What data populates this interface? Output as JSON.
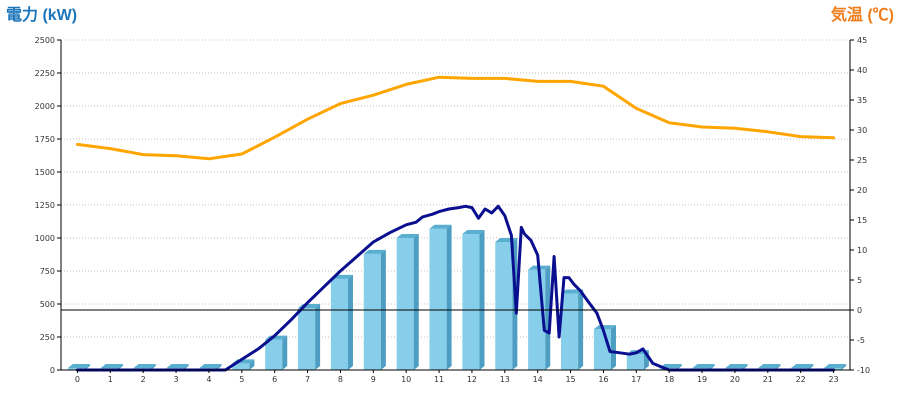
{
  "colors": {
    "left_title": "#1b75bb",
    "right_title": "#ee7d1c",
    "bar_face": "#87ceea",
    "bar_side": "#4d9ec2",
    "bar_top": "#5aaed0",
    "power_line": "#0a0f8f",
    "temp_line": "#ffa500",
    "grid": "#bfbfbf",
    "zero_line": "#000000"
  },
  "chart_data": {
    "type": "bar",
    "left_axis_title": "電力 (kW)",
    "right_axis_title": "気温 (℃)",
    "categories": [
      "0",
      "1",
      "2",
      "3",
      "4",
      "5",
      "6",
      "7",
      "8",
      "9",
      "10",
      "11",
      "12",
      "13",
      "14",
      "15",
      "16",
      "17",
      "18",
      "19",
      "20",
      "21",
      "22",
      "23"
    ],
    "grid": true,
    "ylim_left": [
      0,
      2500
    ],
    "ylim_right": [
      -10,
      45
    ],
    "left_ticks": [
      "0",
      "250",
      "500",
      "750",
      "1000",
      "1250",
      "1500",
      "1750",
      "2000",
      "2250",
      "2500"
    ],
    "right_ticks": [
      "-10",
      "-5",
      "0",
      "5",
      "10",
      "15",
      "20",
      "25",
      "30",
      "35",
      "40",
      "45"
    ],
    "series": [
      {
        "kind": "bar",
        "axis": "left",
        "values": [
          0,
          0,
          0,
          0,
          0,
          50,
          230,
          470,
          690,
          880,
          1000,
          1070,
          1030,
          970,
          760,
          580,
          310,
          120,
          0,
          0,
          0,
          0,
          0,
          0
        ]
      },
      {
        "kind": "line",
        "axis": "left",
        "x": [
          0,
          3,
          4.5,
          5,
          5.5,
          6,
          6.5,
          7,
          7.5,
          8,
          8.5,
          9,
          9.5,
          10,
          10.3,
          10.5,
          10.8,
          11,
          11.3,
          11.6,
          11.8,
          12,
          12.2,
          12.4,
          12.6,
          12.8,
          13,
          13.2,
          13.35,
          13.5,
          13.6,
          13.8,
          14,
          14.2,
          14.35,
          14.5,
          14.65,
          14.8,
          14.95,
          15.1,
          15.3,
          15.5,
          15.8,
          16,
          16.2,
          16.5,
          16.8,
          17,
          17.2,
          17.5,
          17.8,
          18,
          19,
          23
        ],
        "values": [
          0,
          0,
          0,
          80,
          160,
          260,
          380,
          510,
          630,
          750,
          860,
          970,
          1040,
          1100,
          1120,
          1160,
          1180,
          1200,
          1220,
          1230,
          1240,
          1230,
          1150,
          1220,
          1190,
          1240,
          1170,
          1020,
          430,
          1080,
          1030,
          980,
          870,
          300,
          280,
          860,
          250,
          700,
          700,
          650,
          600,
          530,
          430,
          300,
          140,
          130,
          120,
          130,
          160,
          50,
          20,
          0,
          0,
          0
        ]
      },
      {
        "kind": "line",
        "axis": "right",
        "x": [
          0,
          1,
          2,
          3,
          4,
          5,
          6,
          7,
          8,
          9,
          10,
          11,
          12,
          13,
          14,
          15,
          16,
          17,
          18,
          19,
          20,
          21,
          22,
          23
        ],
        "values": [
          27.6,
          26.9,
          25.9,
          25.7,
          25.2,
          26.0,
          28.8,
          31.8,
          34.4,
          35.8,
          37.6,
          38.8,
          38.6,
          38.6,
          38.1,
          38.1,
          37.3,
          33.6,
          31.2,
          30.5,
          30.3,
          29.7,
          28.9,
          28.7
        ]
      }
    ]
  }
}
